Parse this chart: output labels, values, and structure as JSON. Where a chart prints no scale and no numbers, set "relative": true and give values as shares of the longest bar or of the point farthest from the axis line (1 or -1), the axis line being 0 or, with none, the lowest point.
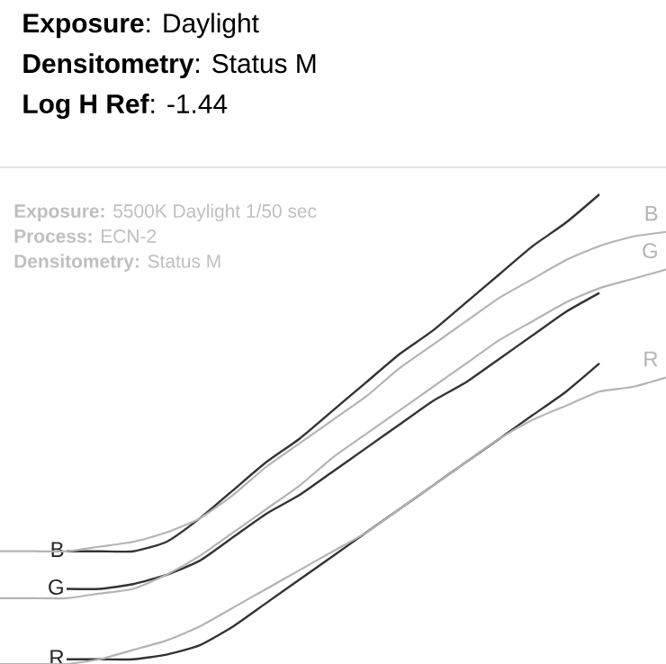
{
  "chart_data": {
    "type": "line",
    "relative": true,
    "legend": false,
    "marker": "none",
    "line_style": "solid",
    "categories": [
      null,
      null,
      null,
      null,
      null,
      null,
      null,
      null,
      null,
      null,
      null,
      null,
      null,
      null,
      null,
      null,
      null,
      null,
      null,
      null,
      null
    ],
    "series": [
      {
        "name": "B",
        "color": "#333333",
        "values": [
          null,
          null,
          0.24,
          0.24,
          0.24,
          0.26,
          0.31,
          0.37,
          0.43,
          0.48,
          0.54,
          0.6,
          0.66,
          0.71,
          0.77,
          0.83,
          0.89,
          0.94,
          1,
          null,
          null
        ]
      },
      {
        "name": "G",
        "color": "#333333",
        "values": [
          null,
          null,
          0.16,
          0.16,
          0.17,
          0.19,
          0.22,
          0.27,
          0.32,
          0.36,
          0.41,
          0.46,
          0.51,
          0.56,
          0.6,
          0.65,
          0.7,
          0.75,
          0.79,
          null,
          null
        ]
      },
      {
        "name": "R",
        "color": "#333333",
        "values": [
          null,
          null,
          0.01,
          0.01,
          0.01,
          0.02,
          0.04,
          0.08,
          0.13,
          0.18,
          0.23,
          0.28,
          0.33,
          0.38,
          0.43,
          0.48,
          0.53,
          0.58,
          0.64,
          null,
          null
        ]
      },
      {
        "name": "B",
        "color": "#b4b4b4",
        "values": [
          0.24,
          0.24,
          0.24,
          0.25,
          0.26,
          0.28,
          0.31,
          0.36,
          0.42,
          0.47,
          0.52,
          0.57,
          0.63,
          0.68,
          0.73,
          0.78,
          0.82,
          0.86,
          0.89,
          0.91,
          0.92
        ]
      },
      {
        "name": "G",
        "color": "#b4b4b4",
        "values": [
          0.14,
          0.14,
          0.14,
          0.15,
          0.16,
          0.19,
          0.23,
          0.28,
          0.33,
          0.38,
          0.44,
          0.49,
          0.54,
          0.59,
          0.64,
          0.69,
          0.73,
          0.77,
          0.8,
          0.82,
          0.84
        ]
      },
      {
        "name": "R",
        "color": "#b4b4b4",
        "values": [
          0,
          0,
          0,
          0.01,
          0.03,
          0.05,
          0.08,
          0.12,
          0.16,
          0.2,
          0.24,
          0.28,
          0.33,
          0.38,
          0.43,
          0.48,
          0.52,
          0.55,
          0.58,
          0.59,
          0.61
        ]
      }
    ],
    "annotations": [
      "**Exposure**: Daylight",
      "**Densitometry**: Status M",
      "**Log H Ref**: -1.44",
      "**Exposure:** 5500K Daylight 1/50 sec",
      "**Process:** ECN-2",
      "**Densitometry:** Status M"
    ]
  }
}
